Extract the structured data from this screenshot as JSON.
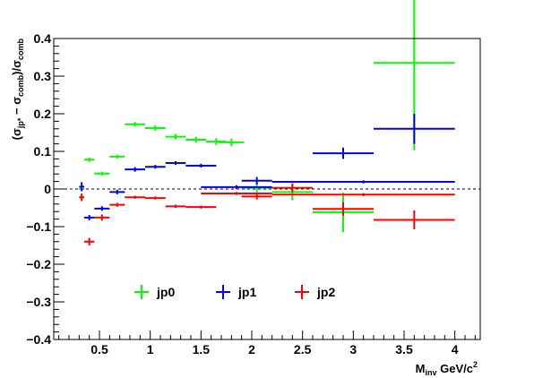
{
  "chart_data": {
    "type": "scatter",
    "title": "",
    "xlabel_main": "M",
    "xlabel_sub": "inv",
    "xlabel_rest": " GeV/c",
    "xlabel_sup": "2",
    "ylabel_parts": {
      "open": "(σ",
      "sub1": "jp*",
      "minus": " − σ",
      "sub2": "comb",
      "mid": ")/σ",
      "sub3": "comb"
    },
    "xlim": [
      0.05,
      4.25
    ],
    "ylim": [
      -0.4,
      0.4
    ],
    "x_ticks": [
      {
        "value": 0.5,
        "label": "0.5"
      },
      {
        "value": 1.0,
        "label": "1"
      },
      {
        "value": 1.5,
        "label": "1.5"
      },
      {
        "value": 2.0,
        "label": "2"
      },
      {
        "value": 2.5,
        "label": "2.5"
      },
      {
        "value": 3.0,
        "label": "3"
      },
      {
        "value": 3.5,
        "label": "3.5"
      },
      {
        "value": 4.0,
        "label": "4"
      }
    ],
    "y_ticks": [
      {
        "value": 0.4,
        "label": "0.4"
      },
      {
        "value": 0.3,
        "label": "0.3"
      },
      {
        "value": 0.2,
        "label": "0.2"
      },
      {
        "value": 0.1,
        "label": "0.1"
      },
      {
        "value": 0.0,
        "label": "0"
      },
      {
        "value": -0.1,
        "label": "−0.1"
      },
      {
        "value": -0.2,
        "label": "−0.2"
      },
      {
        "value": -0.3,
        "label": "−0.3"
      },
      {
        "value": -0.4,
        "label": "−0.4"
      }
    ],
    "reference_line": {
      "y": 0,
      "style": "dashed"
    },
    "grid": false,
    "legend_position": "bottom-left",
    "series": [
      {
        "name": "jp0",
        "color": "#00ff00",
        "points": [
          {
            "x": 0.325,
            "y": 0.0,
            "xerr": 0.025,
            "yerr": 0.005
          },
          {
            "x": 0.4,
            "y": 0.078,
            "xerr": 0.05,
            "yerr": 0.006
          },
          {
            "x": 0.525,
            "y": 0.041,
            "xerr": 0.075,
            "yerr": 0.005
          },
          {
            "x": 0.675,
            "y": 0.086,
            "xerr": 0.075,
            "yerr": 0.005
          },
          {
            "x": 0.85,
            "y": 0.172,
            "xerr": 0.1,
            "yerr": 0.006
          },
          {
            "x": 1.05,
            "y": 0.162,
            "xerr": 0.1,
            "yerr": 0.007
          },
          {
            "x": 1.25,
            "y": 0.139,
            "xerr": 0.1,
            "yerr": 0.007
          },
          {
            "x": 1.45,
            "y": 0.131,
            "xerr": 0.1,
            "yerr": 0.008
          },
          {
            "x": 1.65,
            "y": 0.126,
            "xerr": 0.1,
            "yerr": 0.009
          },
          {
            "x": 1.8,
            "y": 0.124,
            "xerr": 0.125,
            "yerr": 0.01
          },
          {
            "x": 2.05,
            "y": 0.003,
            "xerr": 0.15,
            "yerr": 0.013
          },
          {
            "x": 2.4,
            "y": -0.008,
            "xerr": 0.2,
            "yerr": 0.022
          },
          {
            "x": 2.9,
            "y": -0.062,
            "xerr": 0.3,
            "yerr": 0.052
          },
          {
            "x": 3.6,
            "y": 0.335,
            "xerr": 0.4,
            "yerr": 0.232
          }
        ]
      },
      {
        "name": "jp1",
        "color": "#0000ff",
        "points": [
          {
            "x": 0.325,
            "y": 0.006,
            "xerr": 0.025,
            "yerr": 0.012
          },
          {
            "x": 0.4,
            "y": -0.076,
            "xerr": 0.05,
            "yerr": 0.007
          },
          {
            "x": 0.525,
            "y": -0.052,
            "xerr": 0.075,
            "yerr": 0.006
          },
          {
            "x": 0.675,
            "y": -0.008,
            "xerr": 0.075,
            "yerr": 0.006
          },
          {
            "x": 0.85,
            "y": 0.052,
            "xerr": 0.1,
            "yerr": 0.006
          },
          {
            "x": 1.05,
            "y": 0.059,
            "xerr": 0.1,
            "yerr": 0.005
          },
          {
            "x": 1.25,
            "y": 0.069,
            "xerr": 0.1,
            "yerr": 0.005
          },
          {
            "x": 1.5,
            "y": 0.062,
            "xerr": 0.15,
            "yerr": 0.005
          },
          {
            "x": 1.85,
            "y": 0.005,
            "xerr": 0.35,
            "yerr": 0.005
          },
          {
            "x": 2.05,
            "y": 0.022,
            "xerr": 0.15,
            "yerr": 0.01
          },
          {
            "x": 3.1,
            "y": 0.019,
            "xerr": 0.9,
            "yerr": 0.004
          },
          {
            "x": 2.9,
            "y": 0.095,
            "xerr": 0.3,
            "yerr": 0.015
          },
          {
            "x": 3.6,
            "y": 0.16,
            "xerr": 0.4,
            "yerr": 0.04
          }
        ]
      },
      {
        "name": "jp2",
        "color": "#ff0000",
        "points": [
          {
            "x": 0.325,
            "y": -0.022,
            "xerr": 0.025,
            "yerr": 0.01
          },
          {
            "x": 0.4,
            "y": -0.14,
            "xerr": 0.05,
            "yerr": 0.01
          },
          {
            "x": 0.525,
            "y": -0.076,
            "xerr": 0.075,
            "yerr": 0.008
          },
          {
            "x": 0.675,
            "y": -0.042,
            "xerr": 0.075,
            "yerr": 0.005
          },
          {
            "x": 0.85,
            "y": -0.022,
            "xerr": 0.1,
            "yerr": 0.004
          },
          {
            "x": 1.05,
            "y": -0.024,
            "xerr": 0.1,
            "yerr": 0.004
          },
          {
            "x": 1.25,
            "y": -0.046,
            "xerr": 0.1,
            "yerr": 0.004
          },
          {
            "x": 1.5,
            "y": -0.048,
            "xerr": 0.15,
            "yerr": 0.004
          },
          {
            "x": 1.85,
            "y": -0.012,
            "xerr": 0.35,
            "yerr": 0.004
          },
          {
            "x": 2.05,
            "y": -0.02,
            "xerr": 0.15,
            "yerr": 0.008
          },
          {
            "x": 2.4,
            "y": 0.003,
            "xerr": 0.2,
            "yerr": 0.012
          },
          {
            "x": 3.1,
            "y": -0.015,
            "xerr": 0.9,
            "yerr": 0.004
          },
          {
            "x": 2.9,
            "y": -0.053,
            "xerr": 0.3,
            "yerr": 0.018
          },
          {
            "x": 3.6,
            "y": -0.082,
            "xerr": 0.4,
            "yerr": 0.025
          }
        ]
      }
    ]
  }
}
